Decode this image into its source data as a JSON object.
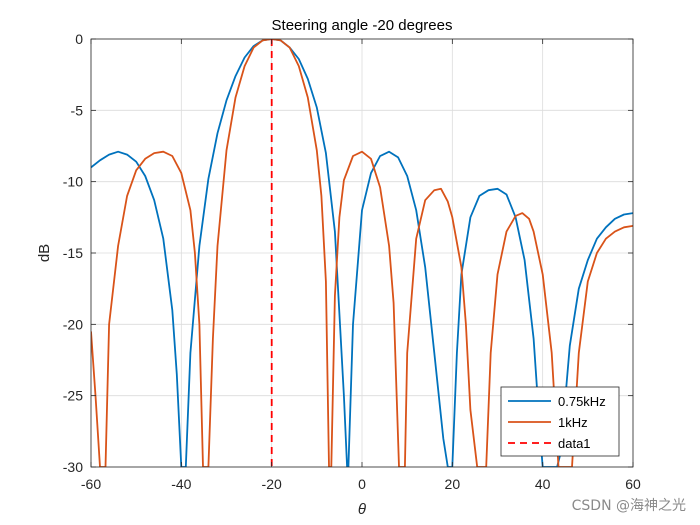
{
  "chart_data": {
    "type": "line",
    "title": "Steering angle -20 degrees",
    "xlabel": "θ",
    "ylabel": "dB",
    "xlim": [
      -60,
      60
    ],
    "ylim": [
      -30,
      0
    ],
    "xticks": [
      -60,
      -40,
      -20,
      0,
      20,
      40,
      60
    ],
    "yticks": [
      0,
      -5,
      -10,
      -15,
      -20,
      -25,
      -30
    ],
    "grid": true,
    "legend_position": "bottom-right",
    "series": [
      {
        "name": "0.75kHz",
        "color": "#0072BD",
        "style": "solid",
        "x": [
          -60,
          -58,
          -56,
          -54,
          -52,
          -50,
          -48,
          -46,
          -44,
          -42,
          -41,
          -40,
          -39.5,
          -39,
          -38,
          -36,
          -34,
          -32,
          -30,
          -28,
          -26,
          -24,
          -22,
          -20,
          -18,
          -16,
          -14,
          -12,
          -10,
          -8,
          -6,
          -4,
          -3.3,
          -3,
          -2,
          0,
          2,
          4,
          6,
          8,
          10,
          12,
          14,
          16,
          18,
          19,
          19.6,
          20,
          21,
          22,
          24,
          26,
          28,
          30,
          32,
          34,
          36,
          38,
          39.5,
          40,
          42,
          43.2,
          44,
          46,
          48,
          50,
          52,
          54,
          56,
          58,
          60
        ],
        "y": [
          -9.0,
          -8.5,
          -8.1,
          -7.9,
          -8.1,
          -8.6,
          -9.6,
          -11.3,
          -14.0,
          -19.0,
          -23.5,
          -30.0,
          -30.0,
          -30.0,
          -22.0,
          -14.5,
          -9.8,
          -6.6,
          -4.3,
          -2.6,
          -1.3,
          -0.5,
          -0.1,
          0.0,
          -0.1,
          -0.6,
          -1.4,
          -2.8,
          -4.8,
          -8.0,
          -13.5,
          -25.0,
          -30.0,
          -30.0,
          -20.0,
          -12.0,
          -9.4,
          -8.2,
          -7.9,
          -8.3,
          -9.6,
          -12.0,
          -16.0,
          -22.0,
          -28.0,
          -30.0,
          -30.0,
          -30.0,
          -22.0,
          -16.5,
          -12.5,
          -11.0,
          -10.6,
          -10.5,
          -10.9,
          -12.5,
          -15.5,
          -21.0,
          -28.0,
          -30.0,
          -30.0,
          -30.0,
          -29.0,
          -21.5,
          -17.5,
          -15.5,
          -14.0,
          -13.2,
          -12.6,
          -12.3,
          -12.2
        ]
      },
      {
        "name": "1kHz",
        "color": "#D95319",
        "style": "solid",
        "x": [
          -60,
          -59,
          -58,
          -57.5,
          -57,
          -56.8,
          -56,
          -54,
          -52,
          -50,
          -48,
          -46,
          -44,
          -42,
          -40,
          -38,
          -37,
          -36,
          -35.2,
          -34.5,
          -34,
          -33,
          -32,
          -30,
          -28,
          -26,
          -24,
          -22,
          -20,
          -18,
          -16,
          -14,
          -12,
          -10,
          -9,
          -8,
          -7.3,
          -6.8,
          -6,
          -5,
          -4,
          -2,
          0,
          2,
          4,
          6,
          7,
          8.2,
          9,
          9.5,
          10,
          12,
          14,
          16,
          17.5,
          19,
          20,
          22,
          23,
          24,
          25.5,
          26.5,
          27.5,
          28.5,
          30,
          32,
          34,
          35.5,
          37,
          38,
          40,
          42,
          43.5,
          44.5,
          45,
          46.5,
          48,
          50,
          52,
          54,
          56,
          58,
          60
        ],
        "y": [
          -20.5,
          -25.0,
          -30.0,
          -30.0,
          -30.0,
          -30.0,
          -20.0,
          -14.5,
          -11.0,
          -9.2,
          -8.4,
          -8.0,
          -7.9,
          -8.2,
          -9.4,
          -12.0,
          -15.0,
          -20.0,
          -30.0,
          -30.0,
          -30.0,
          -21.0,
          -14.5,
          -7.8,
          -4.1,
          -1.9,
          -0.6,
          -0.1,
          0.0,
          -0.1,
          -0.6,
          -1.9,
          -4.1,
          -7.8,
          -11.0,
          -17.0,
          -30.0,
          -30.0,
          -18.0,
          -12.5,
          -9.9,
          -8.2,
          -7.9,
          -8.4,
          -10.4,
          -14.5,
          -18.5,
          -30.0,
          -30.0,
          -30.0,
          -22.0,
          -14.0,
          -11.3,
          -10.6,
          -10.5,
          -11.4,
          -12.5,
          -16.0,
          -20.0,
          -26.0,
          -30.0,
          -30.0,
          -30.0,
          -22.0,
          -16.5,
          -13.5,
          -12.4,
          -12.2,
          -12.6,
          -13.5,
          -16.5,
          -22.0,
          -30.0,
          -30.0,
          -30.0,
          -30.0,
          -22.0,
          -17.0,
          -15.0,
          -14.0,
          -13.5,
          -13.2,
          -13.1
        ]
      },
      {
        "name": "data1",
        "color": "#FF0000",
        "style": "dashed",
        "x": [
          -20,
          -20
        ],
        "y": [
          0,
          -30
        ]
      }
    ]
  },
  "watermark": "CSDN @海神之光"
}
